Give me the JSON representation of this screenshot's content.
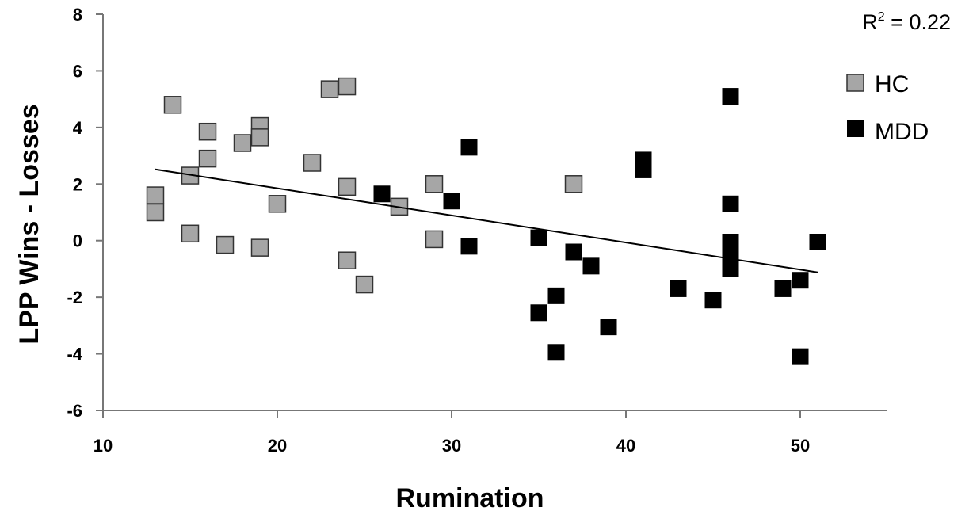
{
  "chart_data": {
    "type": "scatter",
    "xlabel": "Rumination",
    "ylabel": "LPP  Wins - Losses",
    "xlim": [
      10,
      55
    ],
    "ylim": [
      -6,
      8
    ],
    "xticks": [
      "10",
      "20",
      "30",
      "40",
      "50"
    ],
    "yticks": [
      "-6",
      "-4",
      "-2",
      "0",
      "2",
      "4",
      "6",
      "8"
    ],
    "grid": false,
    "legend_position": "top-right",
    "annotation": {
      "r2_label": "R",
      "r2_sup": "2",
      "r2_value": " = 0.22"
    },
    "series": [
      {
        "name": "HC",
        "color": "#a6a6a6",
        "marker": "square",
        "points": [
          [
            13,
            1.6
          ],
          [
            13,
            1.0
          ],
          [
            14,
            4.8
          ],
          [
            15,
            2.3
          ],
          [
            15,
            0.25
          ],
          [
            16,
            3.85
          ],
          [
            16,
            2.9
          ],
          [
            17,
            -0.15
          ],
          [
            18,
            3.45
          ],
          [
            19,
            4.05
          ],
          [
            19,
            3.65
          ],
          [
            19,
            -0.25
          ],
          [
            20,
            1.3
          ],
          [
            22,
            2.75
          ],
          [
            23,
            5.35
          ],
          [
            24,
            5.45
          ],
          [
            24,
            1.9
          ],
          [
            24,
            -0.7
          ],
          [
            25,
            -1.55
          ],
          [
            27,
            1.2
          ],
          [
            29,
            2.0
          ],
          [
            29,
            0.05
          ],
          [
            37,
            2.0
          ]
        ]
      },
      {
        "name": "MDD",
        "color": "#000000",
        "marker": "square",
        "points": [
          [
            26,
            1.65
          ],
          [
            30,
            1.4
          ],
          [
            31,
            3.3
          ],
          [
            31,
            -0.2
          ],
          [
            35,
            0.1
          ],
          [
            35,
            -2.55
          ],
          [
            36,
            -1.95
          ],
          [
            36,
            -3.95
          ],
          [
            37,
            -0.4
          ],
          [
            38,
            -0.9
          ],
          [
            39,
            -3.05
          ],
          [
            41,
            2.85
          ],
          [
            41,
            2.5
          ],
          [
            43,
            -1.7
          ],
          [
            45,
            -2.1
          ],
          [
            46,
            5.1
          ],
          [
            46,
            1.3
          ],
          [
            46,
            -0.05
          ],
          [
            46,
            -0.5
          ],
          [
            46,
            -1.0
          ],
          [
            49,
            -1.7
          ],
          [
            50,
            -1.4
          ],
          [
            50,
            -4.1
          ],
          [
            51,
            -0.05
          ]
        ]
      }
    ],
    "trendline": {
      "x": [
        13,
        51
      ],
      "y": [
        2.52,
        -1.12
      ]
    }
  }
}
